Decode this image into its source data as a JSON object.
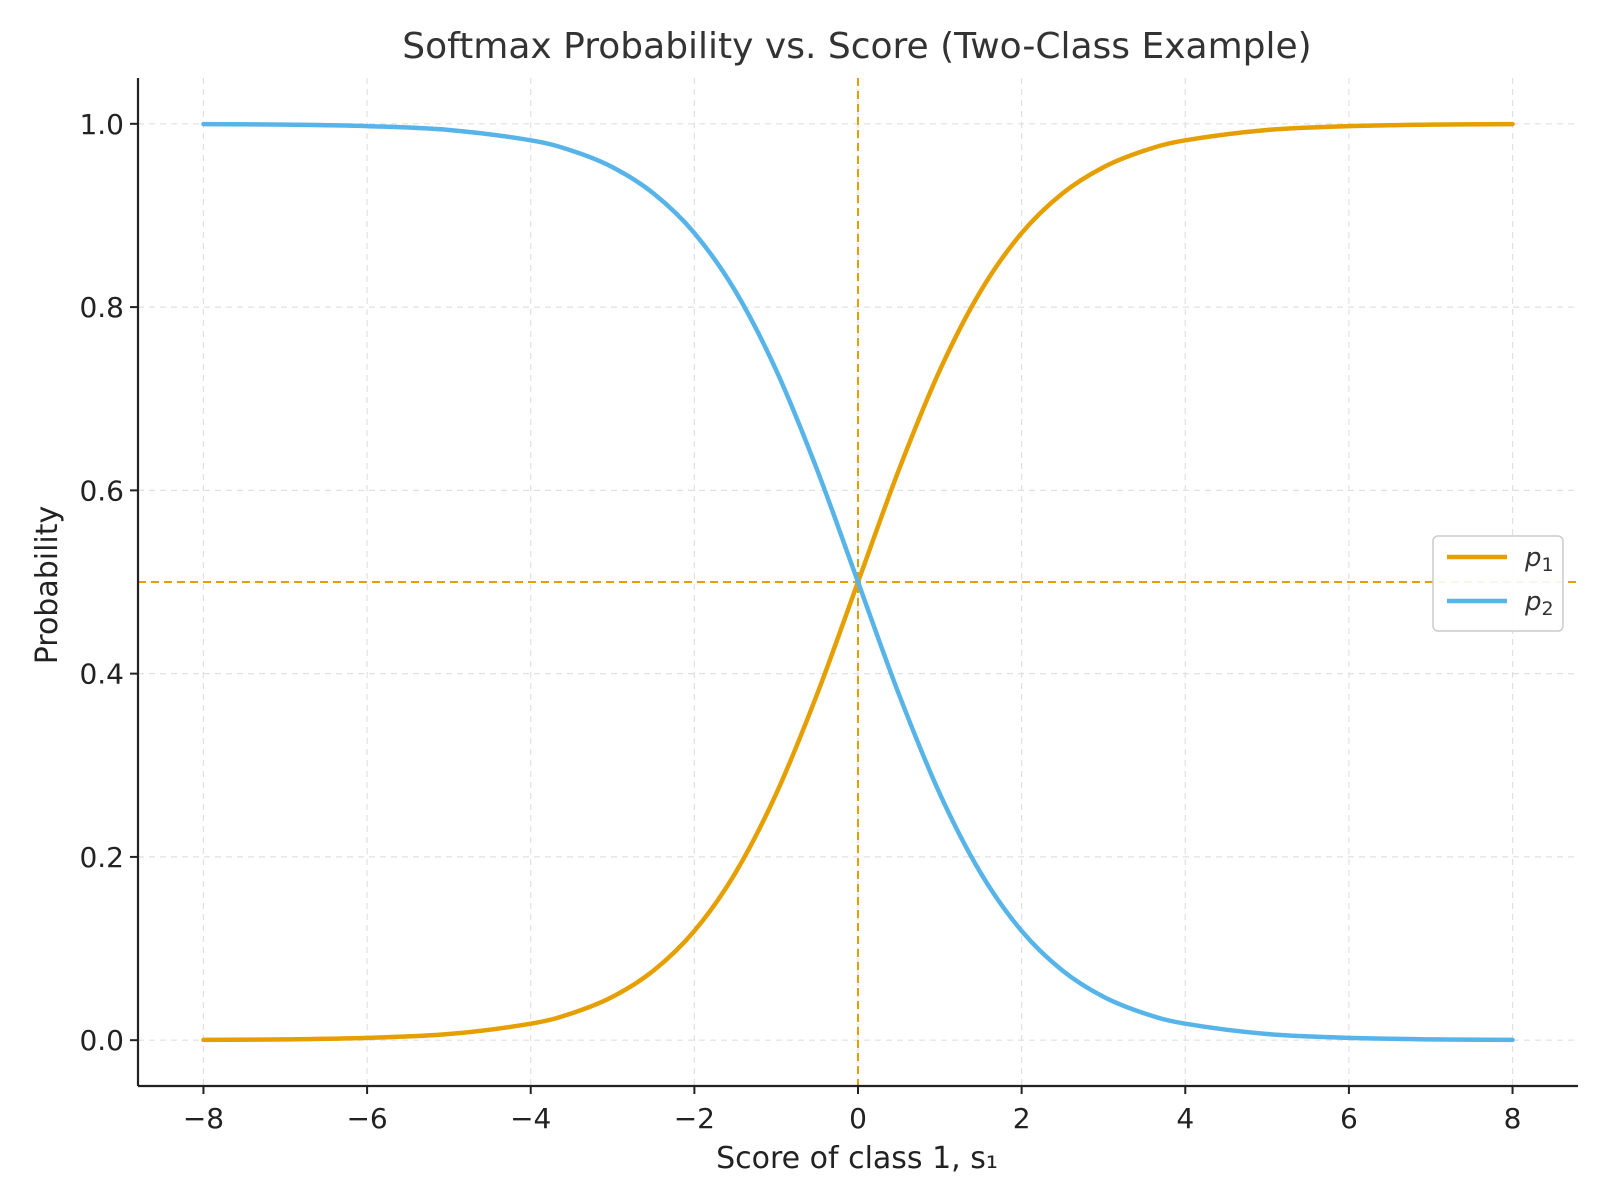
{
  "chart_data": {
    "type": "line",
    "title": "Softmax Probability vs. Score (Two-Class Example)",
    "xlabel": "Score of class 1, s₁",
    "ylabel": "Probability",
    "xlim": [
      -8.8,
      8.8
    ],
    "ylim": [
      -0.05,
      1.05
    ],
    "x_ticks": [
      -8,
      -6,
      -4,
      -2,
      0,
      2,
      4,
      6,
      8
    ],
    "x_tick_labels": [
      "−8",
      "−6",
      "−4",
      "−2",
      "0",
      "2",
      "4",
      "6",
      "8"
    ],
    "y_ticks": [
      0.0,
      0.2,
      0.4,
      0.6,
      0.8,
      1.0
    ],
    "y_tick_labels": [
      "0.0",
      "0.2",
      "0.4",
      "0.6",
      "0.8",
      "1.0"
    ],
    "grid": true,
    "legend_position": "center-right",
    "x": [
      -8,
      -7,
      -6,
      -5,
      -4,
      -3.5,
      -3,
      -2.5,
      -2,
      -1.5,
      -1,
      -0.5,
      0,
      0.5,
      1,
      1.5,
      2,
      2.5,
      3,
      3.5,
      4,
      5,
      6,
      7,
      8
    ],
    "series": [
      {
        "name": "p",
        "subscript": "1",
        "color": "#E69F00",
        "values": [
          0.0003,
          0.0009,
          0.0025,
          0.0067,
          0.018,
          0.0293,
          0.0474,
          0.0759,
          0.1192,
          0.1824,
          0.2689,
          0.3775,
          0.5,
          0.6225,
          0.7311,
          0.8176,
          0.8808,
          0.9241,
          0.9526,
          0.9707,
          0.982,
          0.9933,
          0.9975,
          0.9991,
          0.9997
        ]
      },
      {
        "name": "p",
        "subscript": "2",
        "color": "#56B4E9",
        "values": [
          0.9997,
          0.9991,
          0.9975,
          0.9933,
          0.982,
          0.9707,
          0.9526,
          0.9241,
          0.8808,
          0.8176,
          0.7311,
          0.6225,
          0.5,
          0.3775,
          0.2689,
          0.1824,
          0.1192,
          0.0759,
          0.0474,
          0.0293,
          0.018,
          0.0067,
          0.0025,
          0.0009,
          0.0003
        ]
      }
    ],
    "reference_lines": [
      {
        "orientation": "vertical",
        "value": 0,
        "color": "#E69F00",
        "style": "dashed"
      },
      {
        "orientation": "horizontal",
        "value": 0.5,
        "color": "#E69F00",
        "style": "dashed"
      }
    ]
  }
}
